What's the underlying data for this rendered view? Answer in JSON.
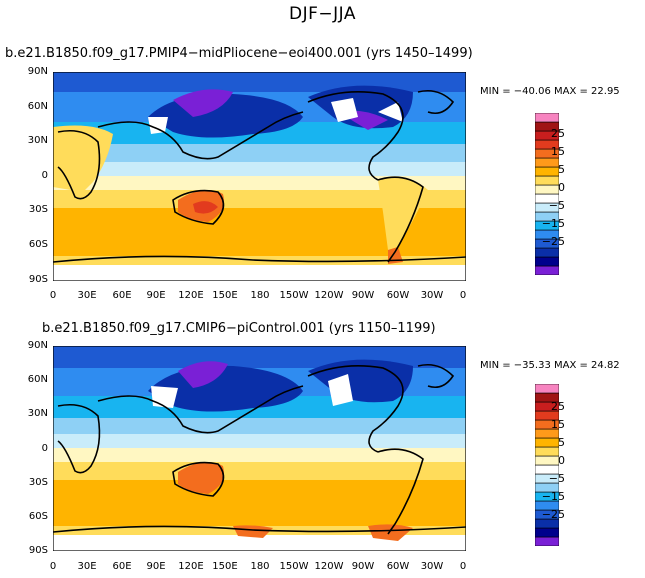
{
  "figure_title": "DJF−JJA",
  "panels": [
    {
      "title": "b.e21.B1850.f09_g17.PMIP4−midPliocene−eoi400.001 (yrs 1450–1499)",
      "overlay_title": "b.e21.B1850.f09_g17",
      "min_max": "MIN = −40.06  MAX =  22.95"
    },
    {
      "title": "b.e21.B1850.f09_g17.CMIP6−piControl.001 (yrs 1150–1199)",
      "overlay_title": "b.e21.B1850.f09_g17",
      "min_max": "MIN = −35.33  MAX =  24.82"
    }
  ],
  "lat_labels": [
    "90N",
    "60N",
    "30N",
    "0",
    "30S",
    "60S",
    "90S"
  ],
  "lon_labels": [
    "0",
    "30E",
    "60E",
    "90E",
    "120E",
    "150E",
    "180",
    "150W",
    "120W",
    "90W",
    "60W",
    "30W",
    "0"
  ],
  "colorbar_labels": [
    "25",
    "15",
    "5",
    "0",
    "−5",
    "−15",
    "−25"
  ],
  "colorbar_colors": [
    "#7a20d6",
    "#00008c",
    "#0a2fa8",
    "#1e5ad2",
    "#2f8cf0",
    "#18b4f0",
    "#8ed0f5",
    "#c9ecfa",
    "#ffffff",
    "#fff7c2",
    "#ffdc5a",
    "#ffb400",
    "#ff9a1a",
    "#f36d1e",
    "#e23b1e",
    "#c81e1e",
    "#a01414",
    "#f784c0"
  ],
  "colors": {
    "ocean_tropics": "#ffb400",
    "cold_pole": "#0a2fa8",
    "missing": "#ffffff"
  }
}
